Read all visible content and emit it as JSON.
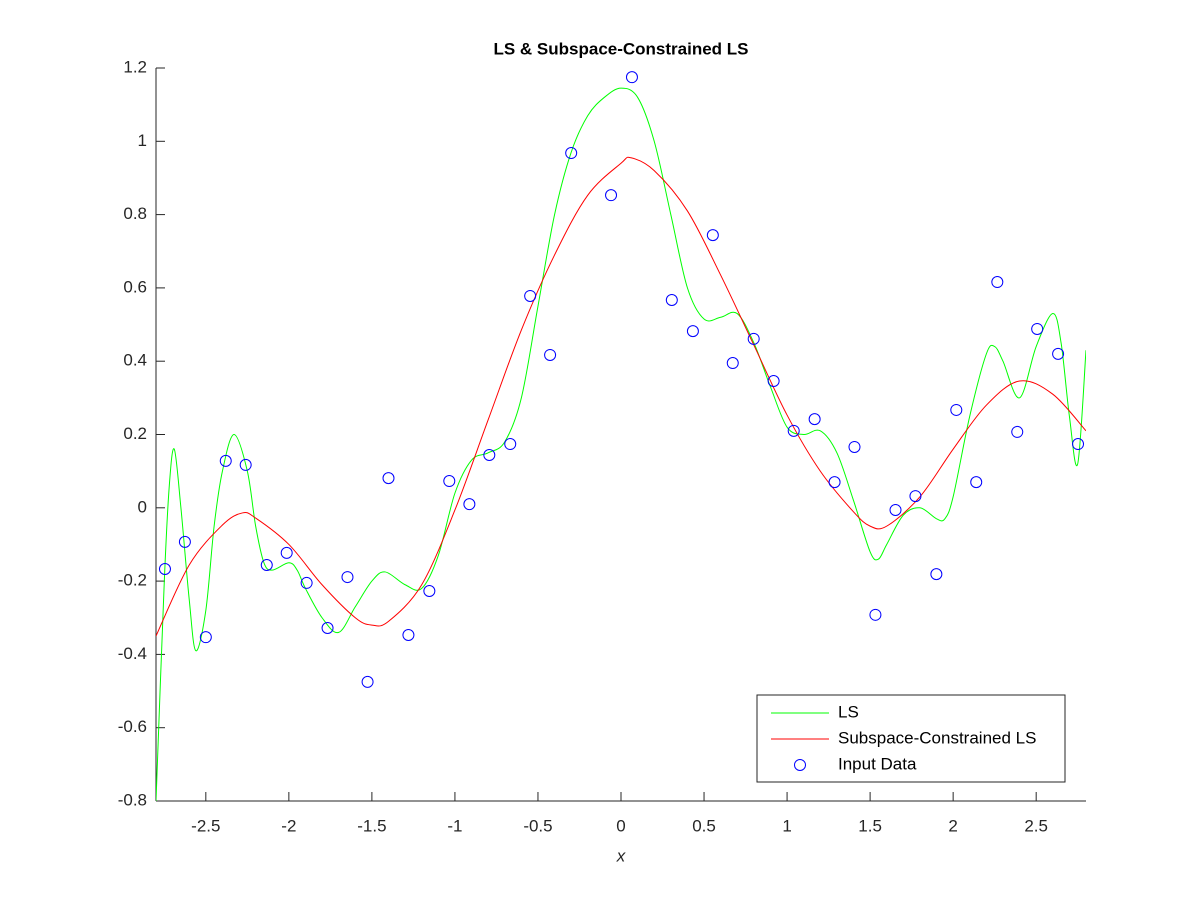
{
  "chart_data": {
    "type": "line",
    "title": "LS & Subspace-Constrained LS",
    "xlabel": "x",
    "xlim": [
      -2.8,
      2.8
    ],
    "ylim": [
      -0.8,
      1.2
    ],
    "xticks": [
      -2.5,
      -2,
      -1.5,
      -1,
      -0.5,
      0,
      0.5,
      1,
      1.5,
      2,
      2.5
    ],
    "yticks": [
      -0.8,
      -0.6,
      -0.4,
      -0.2,
      0,
      0.2,
      0.4,
      0.6,
      0.8,
      1,
      1.2
    ],
    "grid": false,
    "legend": "southeast",
    "series": [
      {
        "name": "LS",
        "type": "line",
        "color": "#00ff00",
        "x": [
          -2.8,
          -2.75,
          -2.72,
          -2.69,
          -2.65,
          -2.6,
          -2.56,
          -2.5,
          -2.45,
          -2.4,
          -2.33,
          -2.25,
          -2.2,
          -2.15,
          -2.1,
          -2.0,
          -1.95,
          -1.9,
          -1.8,
          -1.7,
          -1.6,
          -1.5,
          -1.42,
          -1.3,
          -1.2,
          -1.1,
          -1.0,
          -0.9,
          -0.8,
          -0.7,
          -0.6,
          -0.5,
          -0.4,
          -0.3,
          -0.2,
          -0.1,
          0.0,
          0.1,
          0.2,
          0.3,
          0.4,
          0.5,
          0.6,
          0.7,
          0.8,
          0.9,
          1.0,
          1.1,
          1.2,
          1.3,
          1.4,
          1.5,
          1.55,
          1.6,
          1.7,
          1.8,
          1.9,
          1.95,
          2.0,
          2.1,
          2.2,
          2.25,
          2.3,
          2.4,
          2.5,
          2.6,
          2.65,
          2.7,
          2.75,
          2.8
        ],
        "values": [
          -0.8,
          -0.2,
          0.06,
          0.16,
          0.0,
          -0.25,
          -0.39,
          -0.28,
          -0.05,
          0.1,
          0.2,
          0.1,
          -0.05,
          -0.15,
          -0.17,
          -0.15,
          -0.17,
          -0.22,
          -0.3,
          -0.34,
          -0.27,
          -0.2,
          -0.175,
          -0.21,
          -0.22,
          -0.13,
          0.04,
          0.13,
          0.15,
          0.18,
          0.3,
          0.55,
          0.8,
          0.97,
          1.07,
          1.12,
          1.145,
          1.12,
          1.0,
          0.8,
          0.6,
          0.515,
          0.52,
          0.53,
          0.45,
          0.33,
          0.22,
          0.2,
          0.21,
          0.15,
          0.02,
          -0.12,
          -0.14,
          -0.1,
          -0.02,
          0.0,
          -0.03,
          -0.03,
          0.03,
          0.25,
          0.42,
          0.44,
          0.4,
          0.3,
          0.44,
          0.53,
          0.45,
          0.25,
          0.12,
          0.43
        ]
      },
      {
        "name": "Subspace-Constrained LS",
        "type": "line",
        "color": "#ff0000",
        "x": [
          -2.8,
          -2.6,
          -2.4,
          -2.28,
          -2.2,
          -2.0,
          -1.8,
          -1.6,
          -1.5,
          -1.4,
          -1.2,
          -1.0,
          -0.8,
          -0.6,
          -0.4,
          -0.2,
          0.0,
          0.06,
          0.2,
          0.4,
          0.6,
          0.8,
          1.0,
          1.2,
          1.4,
          1.5,
          1.6,
          1.8,
          2.0,
          2.2,
          2.4,
          2.6,
          2.8
        ],
        "values": [
          -0.35,
          -0.156,
          -0.047,
          -0.014,
          -0.028,
          -0.1,
          -0.21,
          -0.3,
          -0.32,
          -0.31,
          -0.21,
          -0.006,
          0.24,
          0.485,
          0.69,
          0.853,
          0.94,
          0.955,
          0.92,
          0.81,
          0.635,
          0.444,
          0.253,
          0.1,
          -0.011,
          -0.05,
          -0.05,
          0.03,
          0.16,
          0.28,
          0.346,
          0.31,
          0.21
        ]
      },
      {
        "name": "Input Data",
        "type": "scatter",
        "color": "#0000ff",
        "x": [
          -2.746,
          -2.626,
          -2.5,
          -2.38,
          -2.26,
          -2.133,
          -2.013,
          -1.893,
          -1.767,
          -1.647,
          -1.526,
          -1.4,
          -1.28,
          -1.154,
          -1.034,
          -0.913,
          -0.793,
          -0.667,
          -0.547,
          -0.427,
          -0.3,
          -0.06,
          0.066,
          0.306,
          0.433,
          0.553,
          0.673,
          0.799,
          0.919,
          1.04,
          1.166,
          1.286,
          1.406,
          1.532,
          1.653,
          1.773,
          1.899,
          2.019,
          2.139,
          2.266,
          2.386,
          2.506,
          2.632,
          2.752
        ],
        "values": [
          -0.167,
          -0.093,
          -0.353,
          0.128,
          0.117,
          -0.156,
          -0.123,
          -0.205,
          -0.328,
          -0.189,
          -0.475,
          0.081,
          -0.347,
          -0.227,
          0.073,
          0.01,
          0.144,
          0.174,
          0.578,
          0.417,
          0.968,
          0.853,
          1.175,
          0.567,
          0.482,
          0.744,
          0.395,
          0.461,
          0.346,
          0.21,
          0.242,
          0.07,
          0.166,
          -0.292,
          -0.006,
          0.032,
          -0.181,
          0.267,
          0.07,
          0.616,
          0.207,
          0.488,
          0.42,
          0.174
        ]
      }
    ]
  }
}
